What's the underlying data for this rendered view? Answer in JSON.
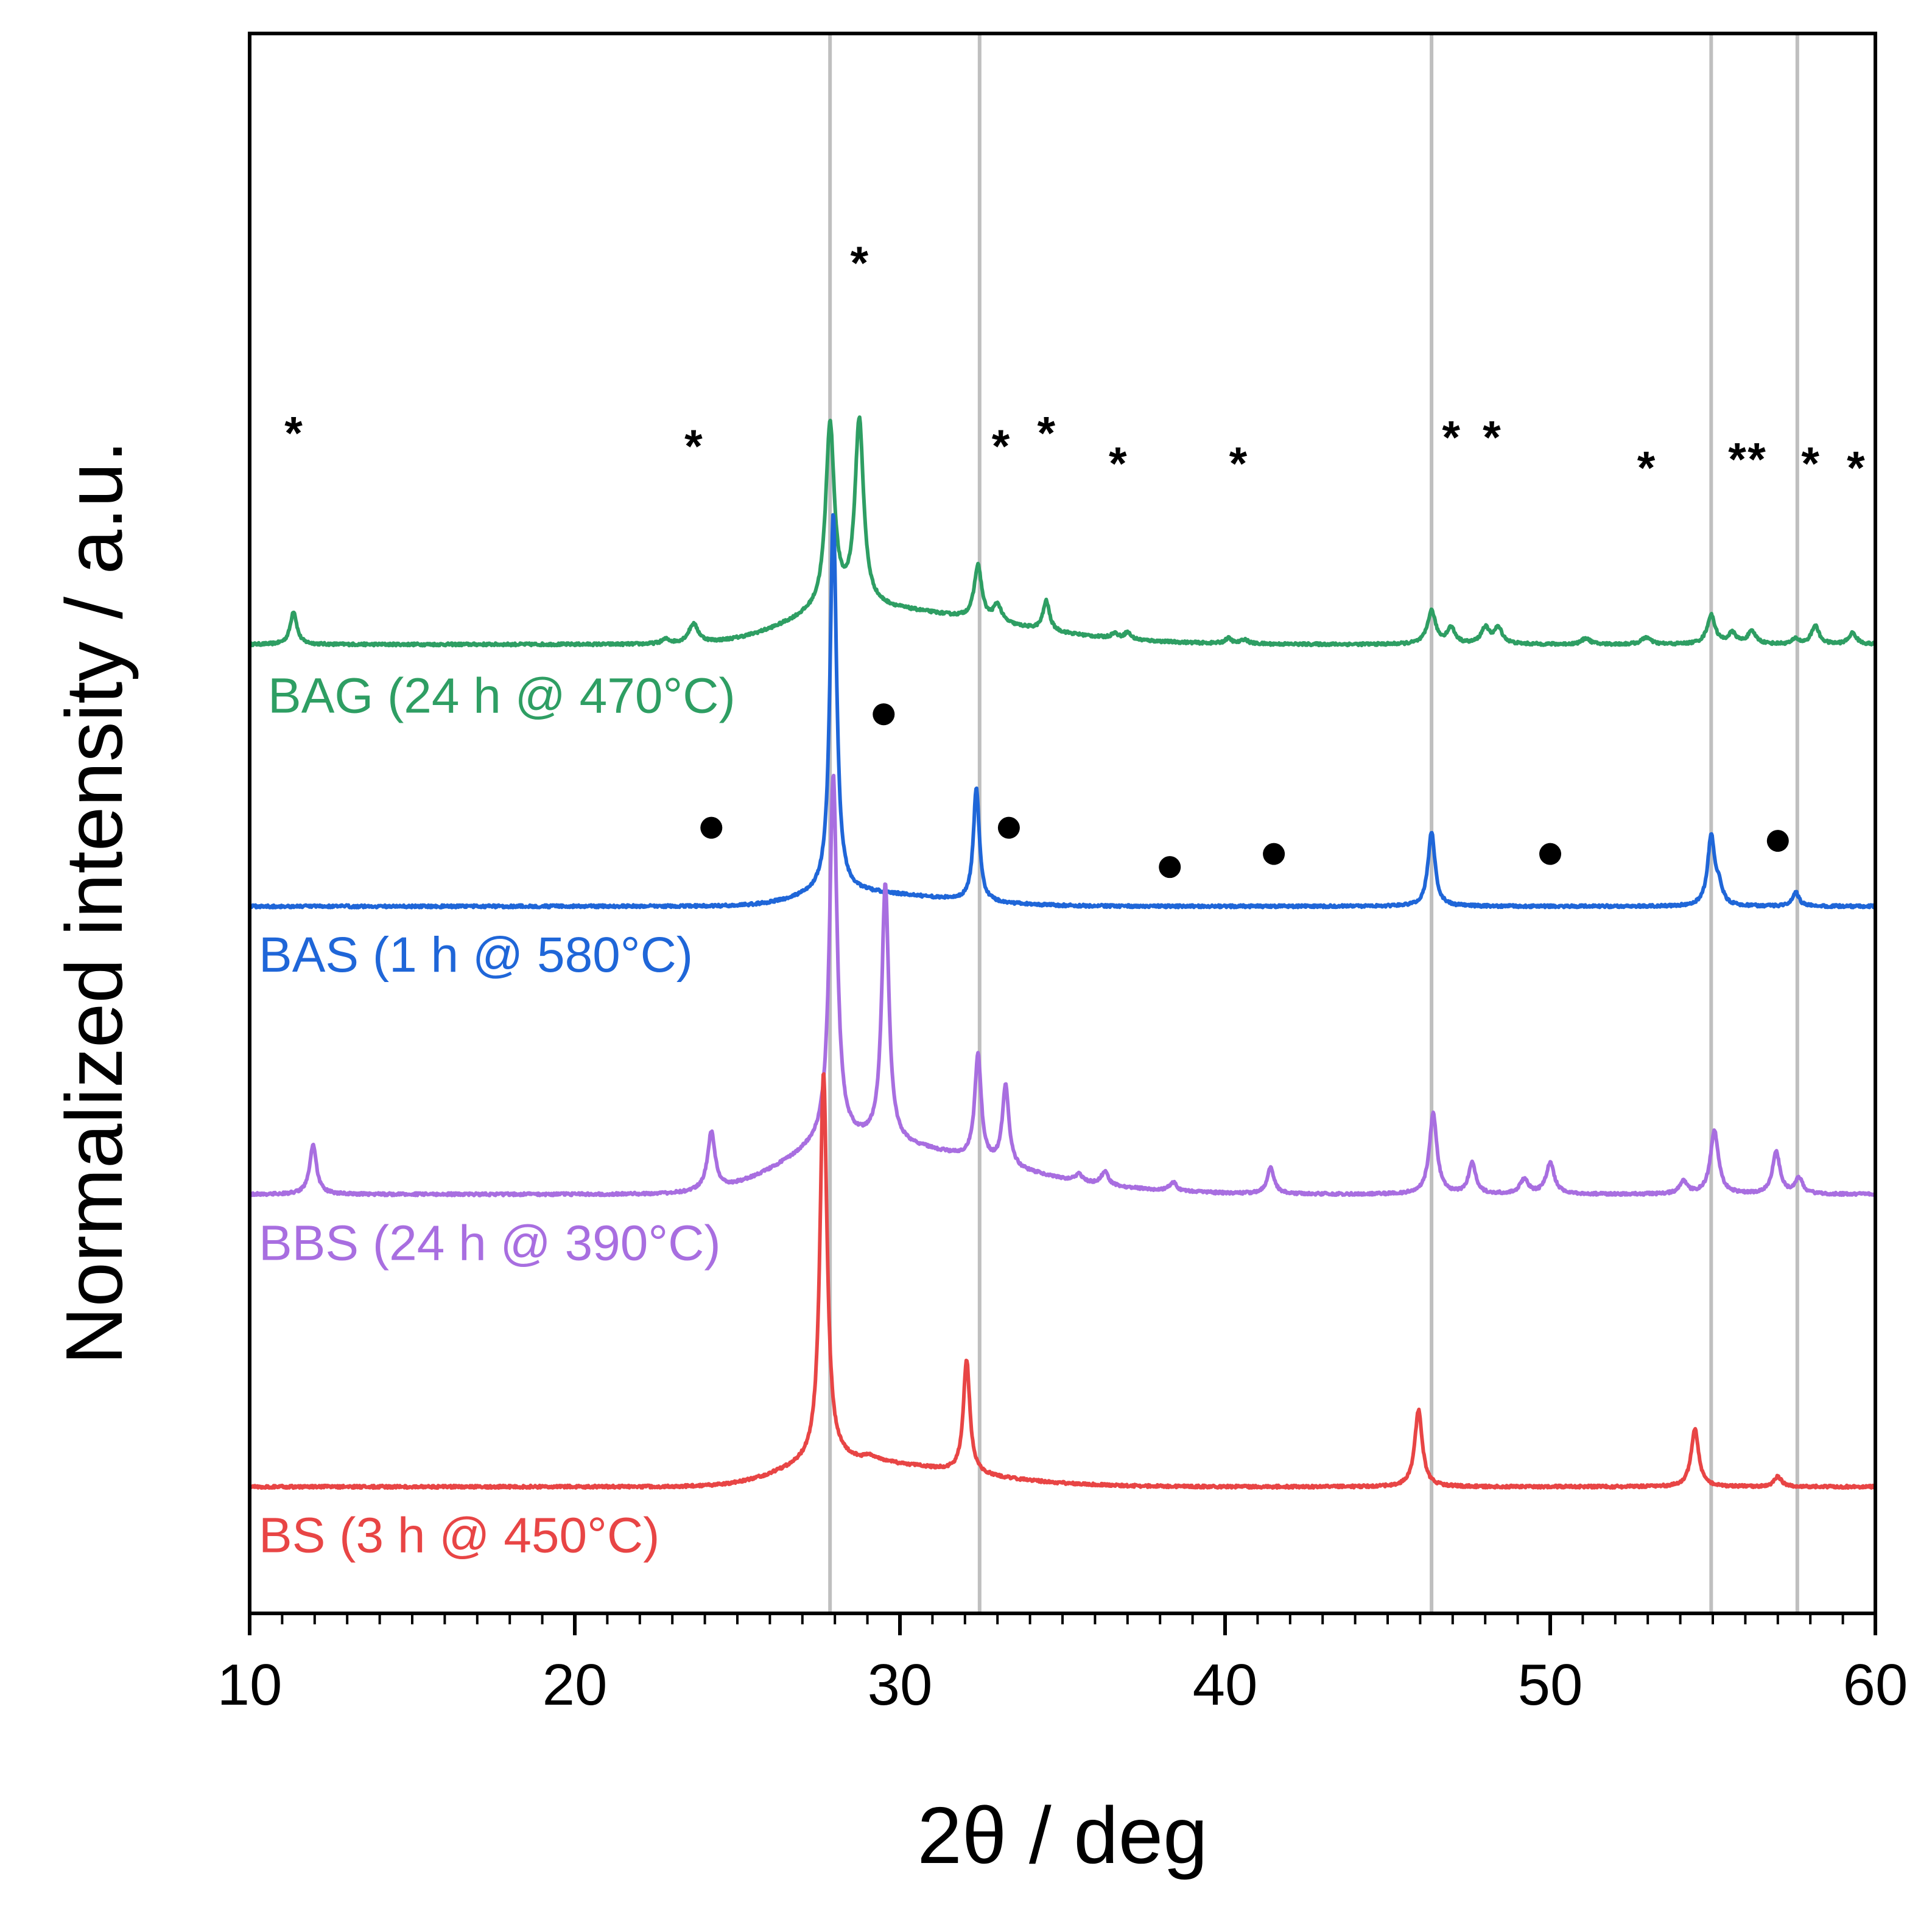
{
  "chart_data": {
    "type": "line",
    "xlabel": "2θ / deg",
    "ylabel": "Normalized intensity / a.u.",
    "xlim": [
      10,
      60
    ],
    "xticks": [
      10,
      20,
      30,
      40,
      50,
      60
    ],
    "x_minor_step": 1,
    "grid": false,
    "y_ticks_shown": false,
    "reference_lines": {
      "color": "#bfbfbf",
      "x": [
        27.85,
        32.45,
        46.35,
        54.95,
        57.6
      ]
    },
    "series": [
      {
        "name": "BAG (24 h @ 470°C)",
        "color": "#2e9e63",
        "baseline": 3.0,
        "peaks": [
          {
            "x": 11.35,
            "h": 0.38,
            "w": 0.12
          },
          {
            "x": 22.8,
            "h": 0.05,
            "w": 0.15
          },
          {
            "x": 23.65,
            "h": 0.22,
            "w": 0.18
          },
          {
            "x": 27.85,
            "h": 2.1,
            "w": 0.16
          },
          {
            "x": 28.75,
            "h": 2.12,
            "w": 0.16
          },
          {
            "x": 32.4,
            "h": 0.62,
            "w": 0.14
          },
          {
            "x": 33.0,
            "h": 0.2,
            "w": 0.15
          },
          {
            "x": 34.5,
            "h": 0.34,
            "w": 0.12
          },
          {
            "x": 36.6,
            "h": 0.06,
            "w": 0.12
          },
          {
            "x": 37.0,
            "h": 0.08,
            "w": 0.12
          },
          {
            "x": 40.1,
            "h": 0.06,
            "w": 0.12
          },
          {
            "x": 40.6,
            "h": 0.05,
            "w": 0.12
          },
          {
            "x": 46.35,
            "h": 0.38,
            "w": 0.15
          },
          {
            "x": 46.95,
            "h": 0.18,
            "w": 0.15
          },
          {
            "x": 48.0,
            "h": 0.18,
            "w": 0.15
          },
          {
            "x": 48.4,
            "h": 0.18,
            "w": 0.16
          },
          {
            "x": 51.1,
            "h": 0.07,
            "w": 0.15
          },
          {
            "x": 52.95,
            "h": 0.08,
            "w": 0.16
          },
          {
            "x": 54.95,
            "h": 0.33,
            "w": 0.15
          },
          {
            "x": 55.6,
            "h": 0.12,
            "w": 0.15
          },
          {
            "x": 56.2,
            "h": 0.14,
            "w": 0.16
          },
          {
            "x": 57.55,
            "h": 0.06,
            "w": 0.12
          },
          {
            "x": 58.15,
            "h": 0.21,
            "w": 0.14
          },
          {
            "x": 59.3,
            "h": 0.13,
            "w": 0.14
          }
        ],
        "hump": {
          "x": 28.5,
          "h": 0.42,
          "w": 2.6,
          "tail": 6.0
        },
        "markers": {
          "symbol": "*",
          "x": [
            11.35,
            23.65,
            28.75,
            33.1,
            34.5,
            36.7,
            40.4,
            46.95,
            48.2,
            52.95,
            55.75,
            56.35,
            58.0,
            59.4
          ],
          "y": [
            5.45,
            5.3,
            7.4,
            5.3,
            5.45,
            5.1,
            5.1,
            5.4,
            5.4,
            5.05,
            5.15,
            5.15,
            5.1,
            5.05
          ]
        }
      },
      {
        "name": "BAS (1 h @ 580°C)",
        "color": "#1f66d8",
        "baseline": 0.0,
        "peaks": [
          {
            "x": 27.95,
            "h": 4.35,
            "w": 0.12
          },
          {
            "x": 32.35,
            "h": 1.3,
            "w": 0.11
          },
          {
            "x": 46.35,
            "h": 0.86,
            "w": 0.13
          },
          {
            "x": 54.95,
            "h": 0.8,
            "w": 0.13
          },
          {
            "x": 55.2,
            "h": 0.18,
            "w": 0.12
          },
          {
            "x": 57.55,
            "h": 0.16,
            "w": 0.12
          }
        ],
        "hump": {
          "x": 28.2,
          "h": 0.16,
          "w": 1.8,
          "tail": 4.0
        },
        "markers": null
      },
      {
        "name": "BBS (24 h @ 390°C)",
        "color": "#a86ee0",
        "baseline": -3.3,
        "peaks": [
          {
            "x": 11.95,
            "h": 0.56,
            "w": 0.13
          },
          {
            "x": 24.2,
            "h": 0.66,
            "w": 0.14
          },
          {
            "x": 27.95,
            "h": 4.2,
            "w": 0.14
          },
          {
            "x": 29.55,
            "h": 2.95,
            "w": 0.13
          },
          {
            "x": 32.4,
            "h": 1.2,
            "w": 0.12
          },
          {
            "x": 33.25,
            "h": 0.92,
            "w": 0.12
          },
          {
            "x": 35.5,
            "h": 0.08,
            "w": 0.12
          },
          {
            "x": 36.3,
            "h": 0.15,
            "w": 0.13
          },
          {
            "x": 38.4,
            "h": 0.1,
            "w": 0.13
          },
          {
            "x": 41.4,
            "h": 0.3,
            "w": 0.13
          },
          {
            "x": 46.4,
            "h": 0.92,
            "w": 0.14
          },
          {
            "x": 47.6,
            "h": 0.36,
            "w": 0.13
          },
          {
            "x": 49.2,
            "h": 0.16,
            "w": 0.16
          },
          {
            "x": 50.0,
            "h": 0.36,
            "w": 0.15
          },
          {
            "x": 54.1,
            "h": 0.14,
            "w": 0.14
          },
          {
            "x": 55.05,
            "h": 0.72,
            "w": 0.15
          },
          {
            "x": 56.95,
            "h": 0.48,
            "w": 0.14
          },
          {
            "x": 57.65,
            "h": 0.18,
            "w": 0.14
          }
        ],
        "hump": {
          "x": 28.4,
          "h": 0.6,
          "w": 2.7,
          "tail": 6.0
        },
        "markers": {
          "symbol": "●",
          "x": [
            24.2,
            29.5,
            33.35,
            38.3,
            41.5,
            50.0,
            57.0
          ],
          "y": [
            0.9,
            2.2,
            0.9,
            0.45,
            0.6,
            0.6,
            0.75
          ]
        }
      },
      {
        "name": "BS (3 h @ 450°C)",
        "color": "#e84545",
        "baseline": -6.65,
        "peaks": [
          {
            "x": 27.65,
            "h": 4.45,
            "w": 0.13
          },
          {
            "x": 29.1,
            "h": 0.05,
            "w": 0.2
          },
          {
            "x": 32.05,
            "h": 1.3,
            "w": 0.12
          },
          {
            "x": 45.95,
            "h": 0.88,
            "w": 0.14
          },
          {
            "x": 54.45,
            "h": 0.66,
            "w": 0.14
          },
          {
            "x": 57.0,
            "h": 0.12,
            "w": 0.13
          }
        ],
        "hump": {
          "x": 28.0,
          "h": 0.3,
          "w": 2.2,
          "tail": 5.0
        },
        "markers": null
      }
    ]
  }
}
